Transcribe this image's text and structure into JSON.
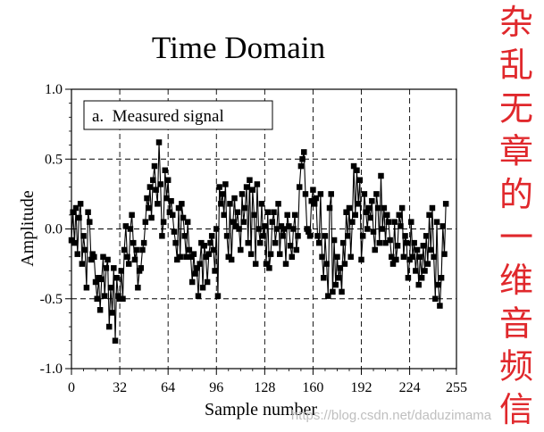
{
  "chart_data": {
    "type": "line",
    "title": "Time Domain",
    "xlabel": "Sample number",
    "ylabel": "Amplitude",
    "xlim": [
      0,
      255
    ],
    "ylim": [
      -1.0,
      1.0
    ],
    "x_ticks": [
      0,
      32,
      64,
      96,
      128,
      160,
      192,
      224,
      255
    ],
    "x_tick_labels": [
      "0",
      "32",
      "64",
      "96",
      "128",
      "160",
      "192",
      "224",
      "255"
    ],
    "y_ticks": [
      1.0,
      0.5,
      0.0,
      -0.5,
      -1.0
    ],
    "y_tick_labels": [
      "1.0",
      "0.5",
      "0.0",
      "-0.5",
      "-1.0"
    ],
    "grid": true,
    "marker": "square",
    "series_color": "#000000",
    "series": [
      {
        "x_start": 0,
        "x_step": 1,
        "values": [
          -0.08,
          0.12,
          -0.1,
          0.15,
          -0.18,
          0.08,
          0.18,
          -0.25,
          -0.05,
          -0.15,
          -0.42,
          0.12,
          0.05,
          -0.22,
          -0.18,
          -0.2,
          -0.38,
          -0.5,
          -0.35,
          -0.58,
          -0.36,
          -0.2,
          -0.48,
          -0.28,
          -0.22,
          -0.7,
          -0.42,
          -0.6,
          -0.28,
          -0.8,
          -0.35,
          -0.48,
          -0.5,
          -0.3,
          -0.5,
          -0.15,
          0.02,
          -0.2,
          -0.25,
          0.0,
          0.1,
          -0.1,
          -0.22,
          -0.15,
          -0.42,
          -0.3,
          -0.28,
          -0.15,
          -0.1,
          0.05,
          0.22,
          0.15,
          0.3,
          0.08,
          0.35,
          0.45,
          0.28,
          0.18,
          0.62,
          0.32,
          -0.05,
          0.05,
          0.42,
          0.22,
          0.35,
          0.12,
          0.2,
          0.1,
          -0.02,
          -0.1,
          -0.22,
          0.15,
          -0.2,
          0.18,
          0.08,
          -0.05,
          -0.2,
          0.05,
          -0.15,
          -0.2,
          -0.38,
          -0.18,
          -0.32,
          -0.28,
          -0.48,
          -0.25,
          -0.1,
          -0.42,
          -0.12,
          -0.2,
          -0.38,
          -0.18,
          -0.1,
          -0.05,
          -0.15,
          -0.3,
          0.0,
          -0.48,
          0.3,
          0.18,
          0.25,
          0.1,
          0.32,
          -0.05,
          -0.2,
          0.18,
          -0.22,
          0.05,
          0.22,
          0.02,
          0.12,
          0.0,
          -0.15,
          0.25,
          0.05,
          0.15,
          0.3,
          -0.1,
          0.35,
          -0.18,
          0.28,
          0.1,
          -0.25,
          0.32,
          0.0,
          -0.1,
          0.18,
          -0.05,
          0.02,
          -0.25,
          0.12,
          -0.28,
          -0.18,
          0.05,
          0.12,
          -0.1,
          0.0,
          0.18,
          -0.18,
          0.02,
          -0.05,
          0.0,
          -0.25,
          0.1,
          0.02,
          -0.12,
          -0.2,
          0.0,
          0.1,
          -0.15,
          -0.05,
          0.3,
          0.45,
          0.5,
          0.55,
          0.25,
          0.0,
          -0.02,
          -0.05,
          0.2,
          0.28,
          0.18,
          0.22,
          -0.05,
          -0.1,
          0.25,
          -0.2,
          -0.35,
          -0.05,
          -0.25,
          -0.48,
          0.15,
          0.25,
          -0.45,
          -0.08,
          -0.4,
          -0.2,
          -0.35,
          -0.28,
          -0.45,
          -0.1,
          -0.25,
          0.12,
          -0.05,
          0.15,
          -0.2,
          0.05,
          0.45,
          0.1,
          0.42,
          0.18,
          0.35,
          -0.22,
          -0.05,
          0.25,
          0.12,
          0.0,
          0.15,
          0.08,
          0.2,
          -0.02,
          -0.15,
          0.25,
          0.15,
          -0.1,
          0.38,
          0.0,
          0.15,
          -0.1,
          0.1,
          0.05,
          -0.08,
          -0.2,
          -0.25,
          0.05,
          -0.22,
          -0.12,
          0.1,
          0.02,
          0.15,
          -0.2,
          -0.05,
          -0.1,
          -0.35,
          -0.22,
          0.05,
          -0.2,
          -0.1,
          -0.3,
          -0.15,
          -0.4,
          -0.2,
          -0.35,
          -0.12,
          -0.3,
          -0.05,
          -0.25,
          0.1,
          -0.15,
          0.15,
          -0.2,
          -0.5,
          0.05,
          -0.4,
          -0.55,
          -0.35,
          0.02,
          -0.18,
          0.18
        ]
      }
    ],
    "annotation": "a.  Measured signal"
  },
  "side_text": {
    "characters": [
      "杂",
      "乱",
      "无",
      "章",
      "的",
      "一",
      "维",
      "音",
      "频",
      "信"
    ],
    "color": "#e0282c"
  },
  "watermark": "https://blog.csdn.net/daduzimama"
}
